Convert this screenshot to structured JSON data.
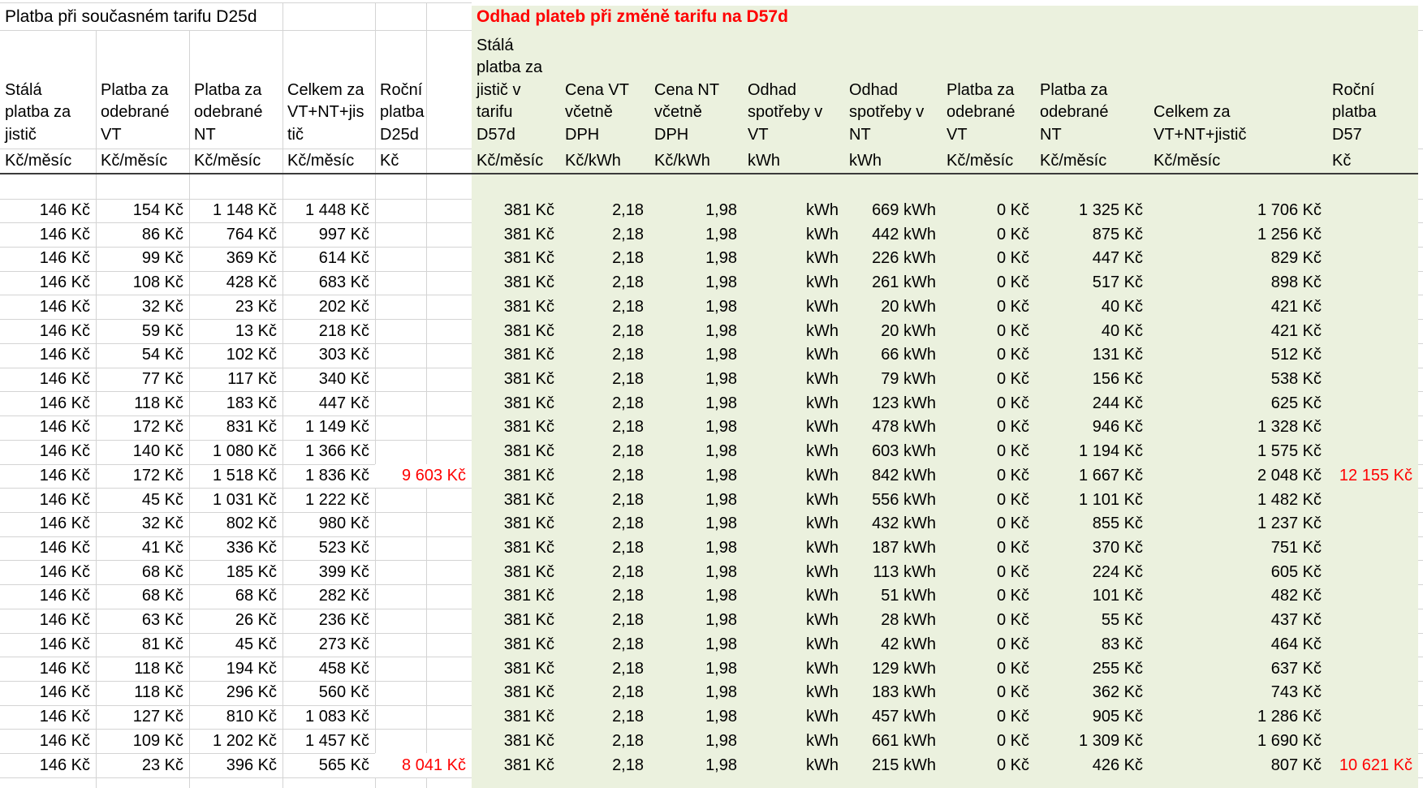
{
  "sheet": {
    "left_section": {
      "title": "Platba při současném tarifu D25d",
      "columns": [
        {
          "header": "Stálá\nplatba za\njistič",
          "unit": "Kč/měsíc"
        },
        {
          "header": "Platba za\nodebrané\nVT",
          "unit": "Kč/měsíc"
        },
        {
          "header": "Platba za\nodebrané\nNT",
          "unit": "Kč/měsíc"
        },
        {
          "header": "Celkem za\nVT+NT+jis\ntič",
          "unit": "Kč/měsíc"
        },
        {
          "header": "Roční\nplatba\nD25d",
          "unit": "Kč"
        }
      ]
    },
    "right_section": {
      "title": "Odhad plateb při změně tarifu na D57d",
      "columns": [
        {
          "header": "Stálá\nplatba za\njistič v\ntarifu\nD57d",
          "unit": "Kč/měsíc"
        },
        {
          "header": "Cena VT\nvčetně\nDPH",
          "unit": "Kč/kWh"
        },
        {
          "header": "Cena NT\nvčetně\nDPH",
          "unit": "Kč/kWh"
        },
        {
          "header": "Odhad\nspotřeby v\nVT",
          "unit": "kWh"
        },
        {
          "header": "Odhad\nspotřeby v\nNT",
          "unit": "kWh"
        },
        {
          "header": "Platba za\nodebrané\nVT",
          "unit": "Kč/měsíc"
        },
        {
          "header": "Platba za\nodebrané\nNT",
          "unit": "Kč/měsíc"
        },
        {
          "header": "Celkem za\nVT+NT+jistič",
          "unit": "Kč/měsíc"
        },
        {
          "header": "Roční\nplatba\nD57",
          "unit": "Kč"
        }
      ]
    },
    "colors": {
      "green_bg": "#ebf1de",
      "red_text": "#ff0000",
      "gridline": "#d4d4d4",
      "dark_border": "#3b3b3b"
    },
    "rows": [
      {
        "left": [
          "146 Kč",
          "154 Kč",
          "1 148 Kč",
          "1 448 Kč",
          ""
        ],
        "right": [
          "381 Kč",
          "2,18",
          "1,98",
          "kWh",
          "669 kWh",
          "0 Kč",
          "1 325 Kč",
          "1 706 Kč",
          ""
        ]
      },
      {
        "left": [
          "146 Kč",
          "86 Kč",
          "764 Kč",
          "997 Kč",
          ""
        ],
        "right": [
          "381 Kč",
          "2,18",
          "1,98",
          "kWh",
          "442 kWh",
          "0 Kč",
          "875 Kč",
          "1 256 Kč",
          ""
        ]
      },
      {
        "left": [
          "146 Kč",
          "99 Kč",
          "369 Kč",
          "614 Kč",
          ""
        ],
        "right": [
          "381 Kč",
          "2,18",
          "1,98",
          "kWh",
          "226 kWh",
          "0 Kč",
          "447 Kč",
          "829 Kč",
          ""
        ]
      },
      {
        "left": [
          "146 Kč",
          "108 Kč",
          "428 Kč",
          "683 Kč",
          ""
        ],
        "right": [
          "381 Kč",
          "2,18",
          "1,98",
          "kWh",
          "261 kWh",
          "0 Kč",
          "517 Kč",
          "898 Kč",
          ""
        ]
      },
      {
        "left": [
          "146 Kč",
          "32 Kč",
          "23 Kč",
          "202 Kč",
          ""
        ],
        "right": [
          "381 Kč",
          "2,18",
          "1,98",
          "kWh",
          "20 kWh",
          "0 Kč",
          "40 Kč",
          "421 Kč",
          ""
        ]
      },
      {
        "left": [
          "146 Kč",
          "59 Kč",
          "13 Kč",
          "218 Kč",
          ""
        ],
        "right": [
          "381 Kč",
          "2,18",
          "1,98",
          "kWh",
          "20 kWh",
          "0 Kč",
          "40 Kč",
          "421 Kč",
          ""
        ]
      },
      {
        "left": [
          "146 Kč",
          "54 Kč",
          "102 Kč",
          "303 Kč",
          ""
        ],
        "right": [
          "381 Kč",
          "2,18",
          "1,98",
          "kWh",
          "66 kWh",
          "0 Kč",
          "131 Kč",
          "512 Kč",
          ""
        ]
      },
      {
        "left": [
          "146 Kč",
          "77 Kč",
          "117 Kč",
          "340 Kč",
          ""
        ],
        "right": [
          "381 Kč",
          "2,18",
          "1,98",
          "kWh",
          "79 kWh",
          "0 Kč",
          "156 Kč",
          "538 Kč",
          ""
        ]
      },
      {
        "left": [
          "146 Kč",
          "118 Kč",
          "183 Kč",
          "447 Kč",
          ""
        ],
        "right": [
          "381 Kč",
          "2,18",
          "1,98",
          "kWh",
          "123 kWh",
          "0 Kč",
          "244 Kč",
          "625 Kč",
          ""
        ]
      },
      {
        "left": [
          "146 Kč",
          "172 Kč",
          "831 Kč",
          "1 149 Kč",
          ""
        ],
        "right": [
          "381 Kč",
          "2,18",
          "1,98",
          "kWh",
          "478 kWh",
          "0 Kč",
          "946 Kč",
          "1 328 Kč",
          ""
        ]
      },
      {
        "left": [
          "146 Kč",
          "140 Kč",
          "1 080 Kč",
          "1 366 Kč",
          ""
        ],
        "right": [
          "381 Kč",
          "2,18",
          "1,98",
          "kWh",
          "603 kWh",
          "0 Kč",
          "1 194 Kč",
          "1 575 Kč",
          ""
        ]
      },
      {
        "left": [
          "146 Kč",
          "172 Kč",
          "1 518 Kč",
          "1 836 Kč",
          "9 603 Kč"
        ],
        "right": [
          "381 Kč",
          "2,18",
          "1,98",
          "kWh",
          "842 kWh",
          "0 Kč",
          "1 667 Kč",
          "2 048 Kč",
          "12 155 Kč"
        ]
      },
      {
        "left": [
          "146 Kč",
          "45 Kč",
          "1 031 Kč",
          "1 222 Kč",
          ""
        ],
        "right": [
          "381 Kč",
          "2,18",
          "1,98",
          "kWh",
          "556 kWh",
          "0 Kč",
          "1 101 Kč",
          "1 482 Kč",
          ""
        ]
      },
      {
        "left": [
          "146 Kč",
          "32 Kč",
          "802 Kč",
          "980 Kč",
          ""
        ],
        "right": [
          "381 Kč",
          "2,18",
          "1,98",
          "kWh",
          "432 kWh",
          "0 Kč",
          "855 Kč",
          "1 237 Kč",
          ""
        ]
      },
      {
        "left": [
          "146 Kč",
          "41 Kč",
          "336 Kč",
          "523 Kč",
          ""
        ],
        "right": [
          "381 Kč",
          "2,18",
          "1,98",
          "kWh",
          "187 kWh",
          "0 Kč",
          "370 Kč",
          "751 Kč",
          ""
        ]
      },
      {
        "left": [
          "146 Kč",
          "68 Kč",
          "185 Kč",
          "399 Kč",
          ""
        ],
        "right": [
          "381 Kč",
          "2,18",
          "1,98",
          "kWh",
          "113 kWh",
          "0 Kč",
          "224 Kč",
          "605 Kč",
          ""
        ]
      },
      {
        "left": [
          "146 Kč",
          "68 Kč",
          "68 Kč",
          "282 Kč",
          ""
        ],
        "right": [
          "381 Kč",
          "2,18",
          "1,98",
          "kWh",
          "51 kWh",
          "0 Kč",
          "101 Kč",
          "482 Kč",
          ""
        ]
      },
      {
        "left": [
          "146 Kč",
          "63 Kč",
          "26 Kč",
          "236 Kč",
          ""
        ],
        "right": [
          "381 Kč",
          "2,18",
          "1,98",
          "kWh",
          "28 kWh",
          "0 Kč",
          "55 Kč",
          "437 Kč",
          ""
        ]
      },
      {
        "left": [
          "146 Kč",
          "81 Kč",
          "45 Kč",
          "273 Kč",
          ""
        ],
        "right": [
          "381 Kč",
          "2,18",
          "1,98",
          "kWh",
          "42 kWh",
          "0 Kč",
          "83 Kč",
          "464 Kč",
          ""
        ]
      },
      {
        "left": [
          "146 Kč",
          "118 Kč",
          "194 Kč",
          "458 Kč",
          ""
        ],
        "right": [
          "381 Kč",
          "2,18",
          "1,98",
          "kWh",
          "129 kWh",
          "0 Kč",
          "255 Kč",
          "637 Kč",
          ""
        ]
      },
      {
        "left": [
          "146 Kč",
          "118 Kč",
          "296 Kč",
          "560 Kč",
          ""
        ],
        "right": [
          "381 Kč",
          "2,18",
          "1,98",
          "kWh",
          "183 kWh",
          "0 Kč",
          "362 Kč",
          "743 Kč",
          ""
        ]
      },
      {
        "left": [
          "146 Kč",
          "127 Kč",
          "810 Kč",
          "1 083 Kč",
          ""
        ],
        "right": [
          "381 Kč",
          "2,18",
          "1,98",
          "kWh",
          "457 kWh",
          "0 Kč",
          "905 Kč",
          "1 286 Kč",
          ""
        ]
      },
      {
        "left": [
          "146 Kč",
          "109 Kč",
          "1 202 Kč",
          "1 457 Kč",
          ""
        ],
        "right": [
          "381 Kč",
          "2,18",
          "1,98",
          "kWh",
          "661 kWh",
          "0 Kč",
          "1 309 Kč",
          "1 690 Kč",
          ""
        ]
      },
      {
        "left": [
          "146 Kč",
          "23 Kč",
          "396 Kč",
          "565 Kč",
          "8 041 Kč"
        ],
        "right": [
          "381 Kč",
          "2,18",
          "1,98",
          "kWh",
          "215 kWh",
          "0 Kč",
          "426 Kč",
          "807 Kč",
          "10 621 Kč"
        ]
      }
    ]
  }
}
